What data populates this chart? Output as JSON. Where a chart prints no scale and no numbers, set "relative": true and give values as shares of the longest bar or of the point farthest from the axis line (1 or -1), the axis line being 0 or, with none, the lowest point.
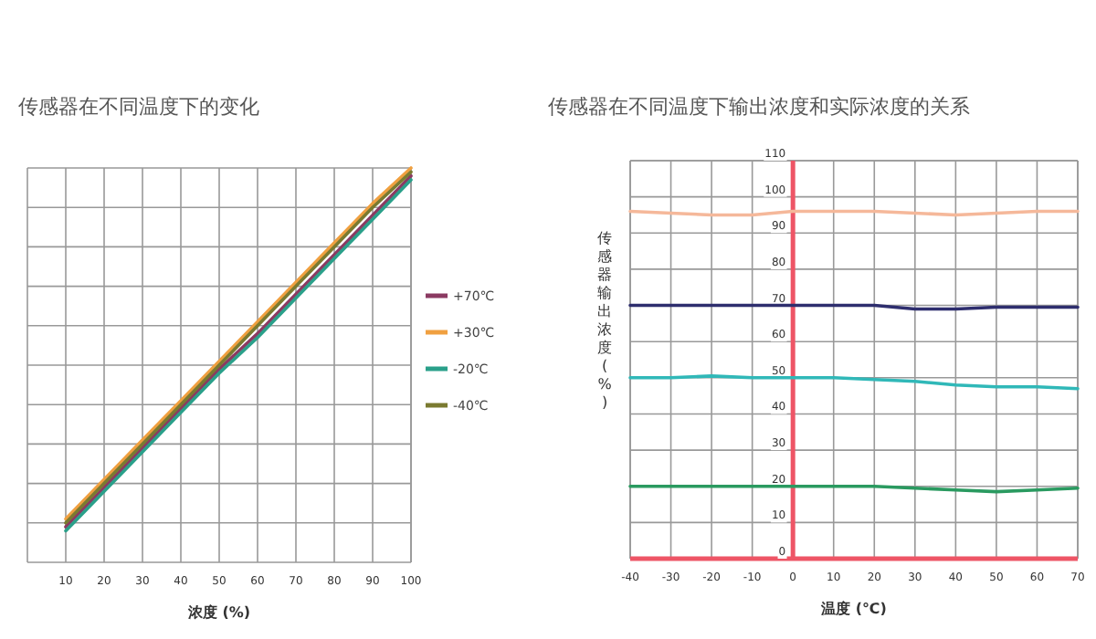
{
  "chart_data": [
    {
      "type": "line",
      "title": "传感器在不同温度下的变化",
      "xlabel": "浓度 (%)",
      "relative": true,
      "tick_labels": "x",
      "grid": true,
      "legend": "right",
      "xlim": [
        0,
        100
      ],
      "xticks": [
        10,
        20,
        30,
        40,
        50,
        60,
        70,
        80,
        90,
        100
      ],
      "x": [
        10,
        20,
        30,
        40,
        50,
        60,
        70,
        80,
        90,
        100
      ],
      "series": [
        {
          "name": "+70℃",
          "color": "#8b3a62",
          "values": [
            0.09,
            0.19,
            0.29,
            0.39,
            0.49,
            0.58,
            0.68,
            0.78,
            0.88,
            0.98
          ]
        },
        {
          "name": "+30℃",
          "color": "#f0a040",
          "values": [
            0.11,
            0.21,
            0.31,
            0.41,
            0.51,
            0.61,
            0.71,
            0.81,
            0.91,
            1
          ]
        },
        {
          "name": "-20℃",
          "color": "#2aa08a",
          "values": [
            0.08,
            0.18,
            0.28,
            0.38,
            0.48,
            0.57,
            0.67,
            0.77,
            0.87,
            0.97
          ]
        },
        {
          "name": "-40℃",
          "color": "#7a7a30",
          "values": [
            0.1,
            0.2,
            0.3,
            0.4,
            0.5,
            0.6,
            0.7,
            0.8,
            0.9,
            0.99
          ]
        }
      ]
    },
    {
      "type": "line",
      "title": "传感器在不同温度下输出浓度和实际浓度的关系",
      "xlabel": "温度 (℃)",
      "ylabel": "传感器输出浓度(%)",
      "grid": true,
      "xlim": [
        -40,
        70
      ],
      "xticks": [
        -40,
        -30,
        -20,
        -10,
        0,
        10,
        20,
        30,
        40,
        50,
        60,
        70
      ],
      "ylim": [
        0,
        110
      ],
      "yticks": [
        0,
        10,
        20,
        30,
        40,
        50,
        60,
        70,
        80,
        90,
        100,
        110
      ],
      "x": [
        -40,
        -30,
        -20,
        -10,
        0,
        10,
        20,
        30,
        40,
        50,
        60,
        70
      ],
      "series": [
        {
          "color": "#f5b89a",
          "values": [
            96,
            95.5,
            95,
            95,
            96,
            96,
            96,
            95.5,
            95,
            95.5,
            96,
            96
          ]
        },
        {
          "color": "#2e2e6e",
          "values": [
            70,
            70,
            70,
            70,
            70,
            70,
            70,
            69,
            69,
            69.5,
            69.5,
            69.5
          ]
        },
        {
          "color": "#30b8b8",
          "values": [
            50,
            50,
            50.5,
            50,
            50,
            50,
            49.5,
            49,
            48,
            47.5,
            47.5,
            47
          ]
        },
        {
          "color": "#2a9a60",
          "values": [
            20,
            20,
            20,
            20,
            20,
            20,
            20,
            19.5,
            19,
            18.5,
            19,
            19.5
          ]
        }
      ]
    }
  ]
}
